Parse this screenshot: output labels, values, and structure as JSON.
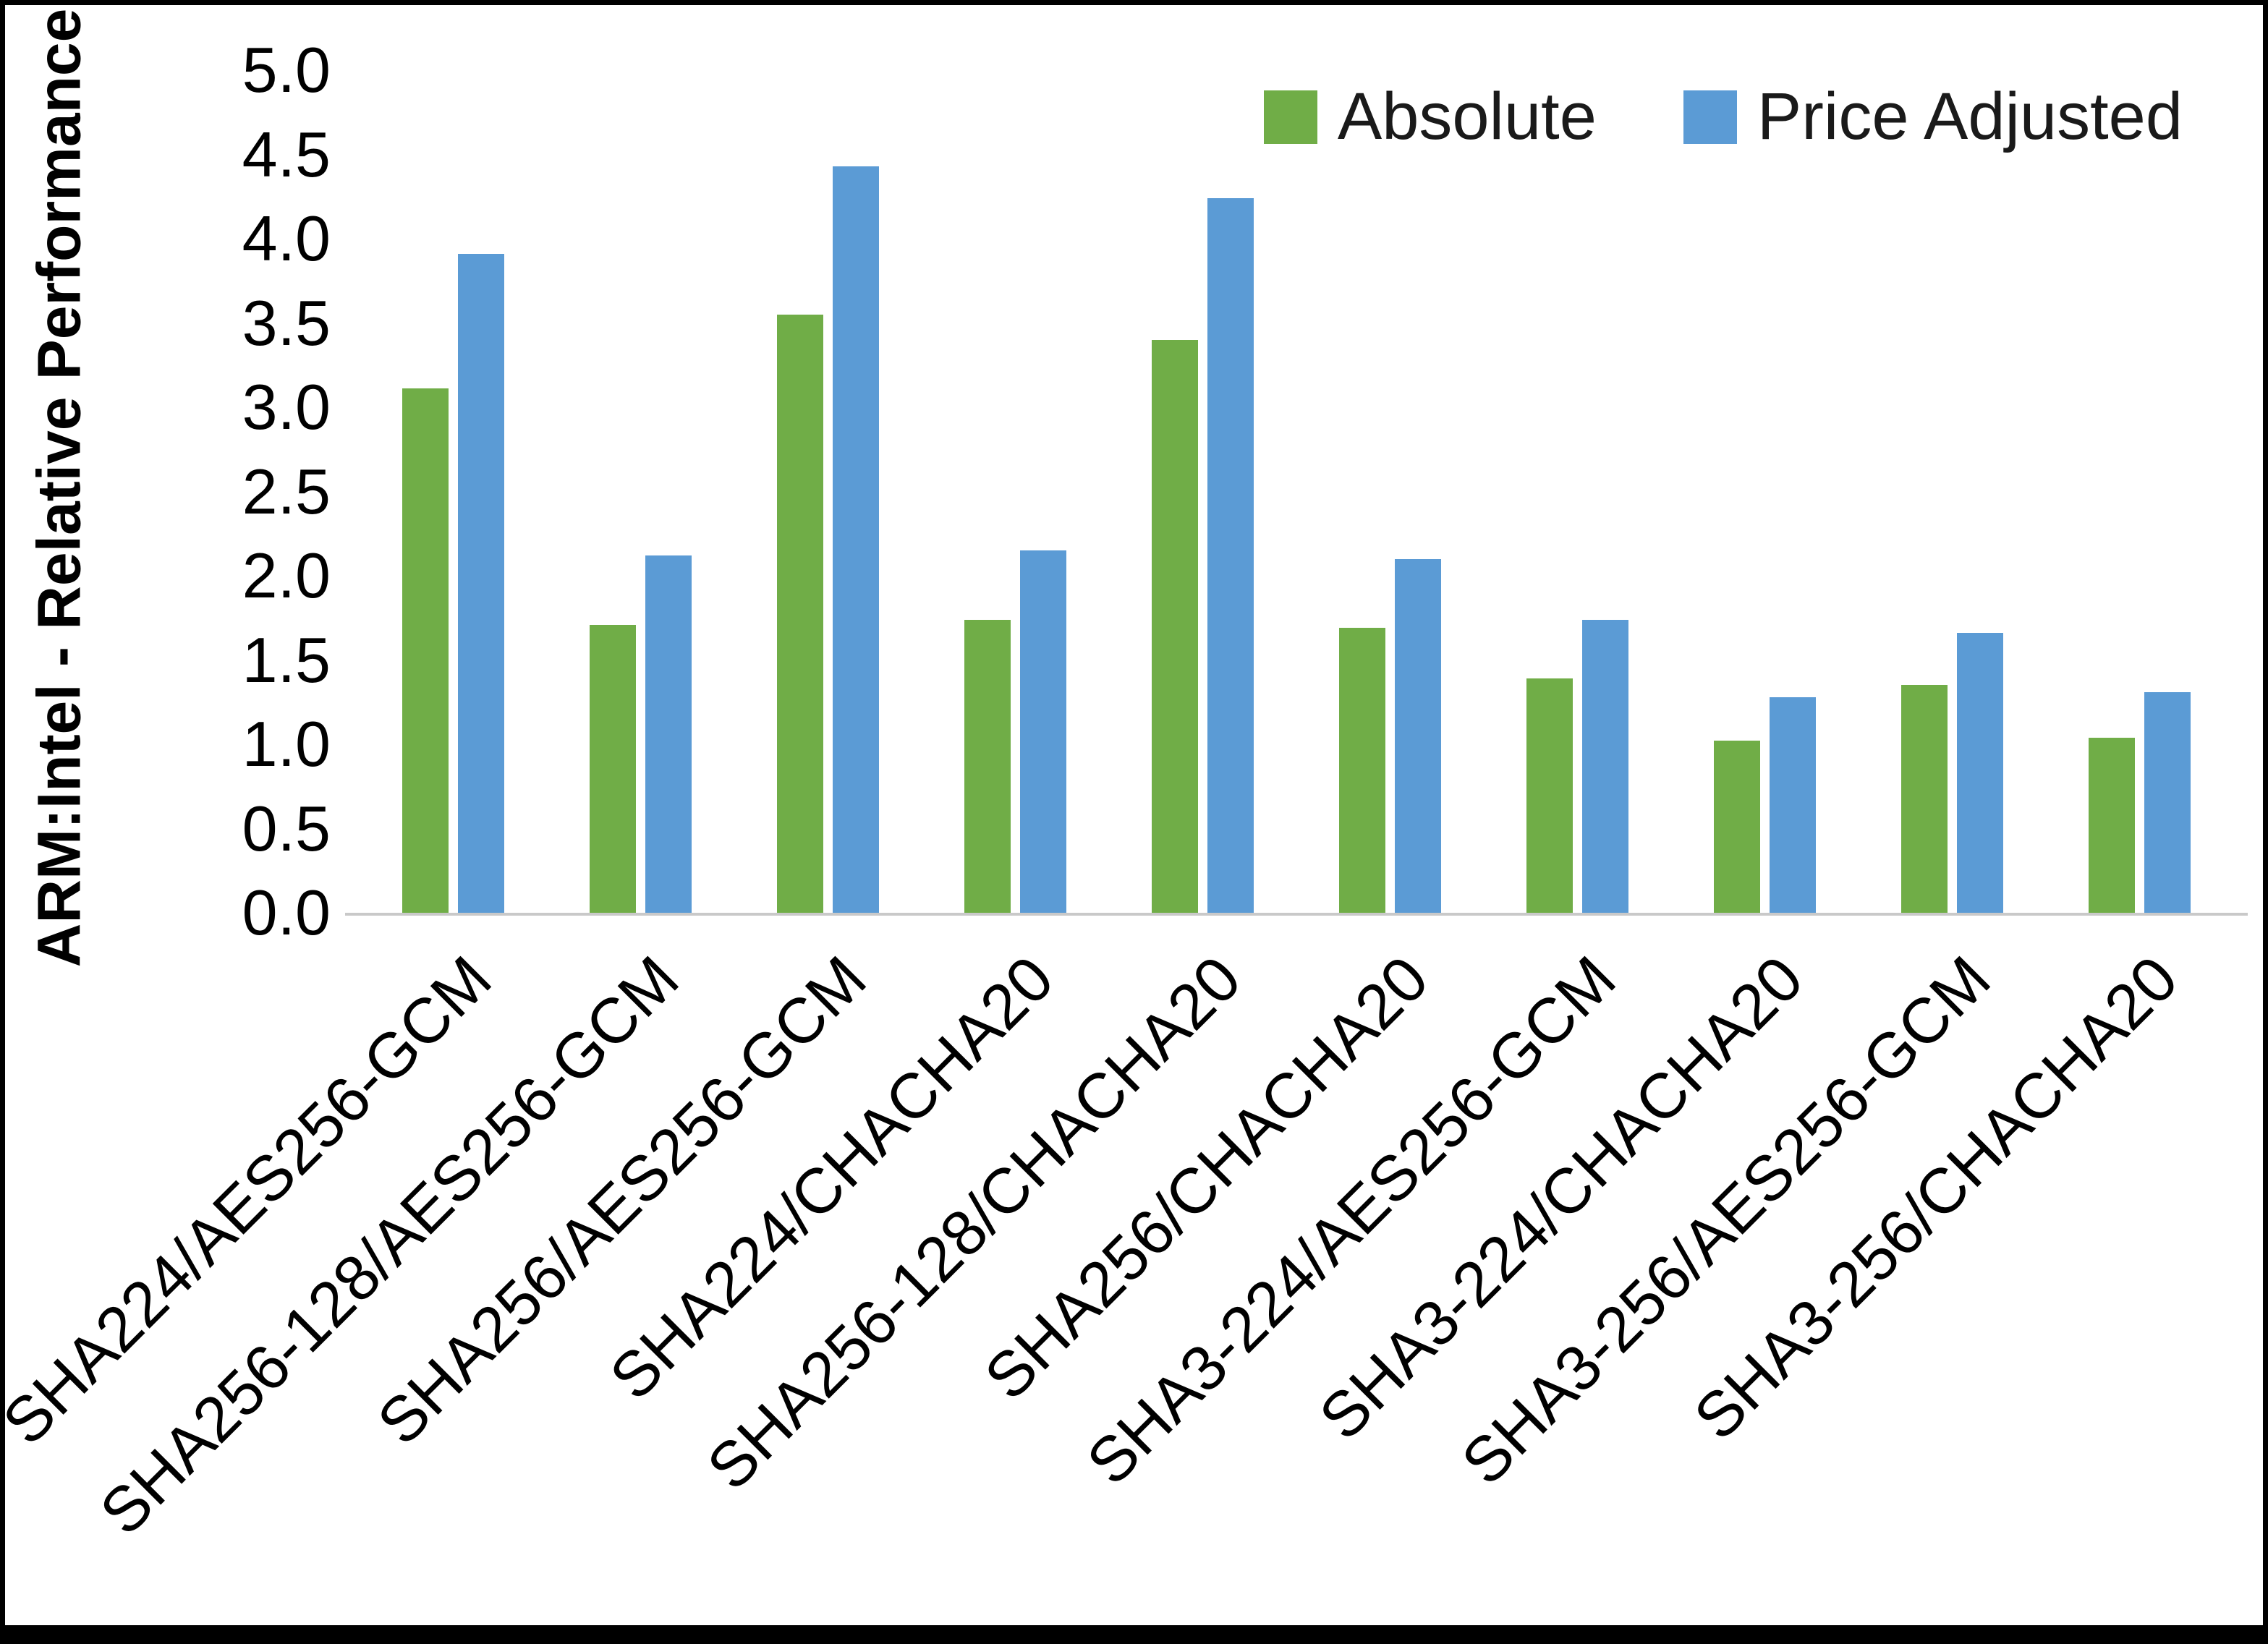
{
  "figure": {
    "background_color": "#ffffff",
    "frame_color": "#000000"
  },
  "chart_data": {
    "type": "bar",
    "title": "",
    "xlabel": "",
    "ylabel": "ARM:Intel - Relative Performance",
    "ylim": [
      0,
      5
    ],
    "ytick_step": 0.5,
    "grid": false,
    "legend_position": "top-right",
    "axis_line_color": "#c9c9c9",
    "categories": [
      "SHA224/AES256-GCM",
      "SHA256-128/AES256-GCM",
      "SHA256/AES256-GCM",
      "SHA224/CHACHA20",
      "SHA256-128/CHACHA20",
      "SHA256/CHACHA20",
      "SHA3-224/AES256-GCM",
      "SHA3-224/CHACHA20",
      "SHA3-256/AES256-GCM",
      "SHA3-256/CHACHA20"
    ],
    "series": [
      {
        "name": "Absolute",
        "color": "#70AD47",
        "values": [
          3.11,
          1.71,
          3.55,
          1.74,
          3.4,
          1.69,
          1.39,
          1.02,
          1.35,
          1.04
        ]
      },
      {
        "name": "Price Adjusted",
        "color": "#5B9BD5",
        "values": [
          3.91,
          2.12,
          4.43,
          2.15,
          4.24,
          2.1,
          1.74,
          1.28,
          1.66,
          1.31
        ]
      }
    ]
  }
}
